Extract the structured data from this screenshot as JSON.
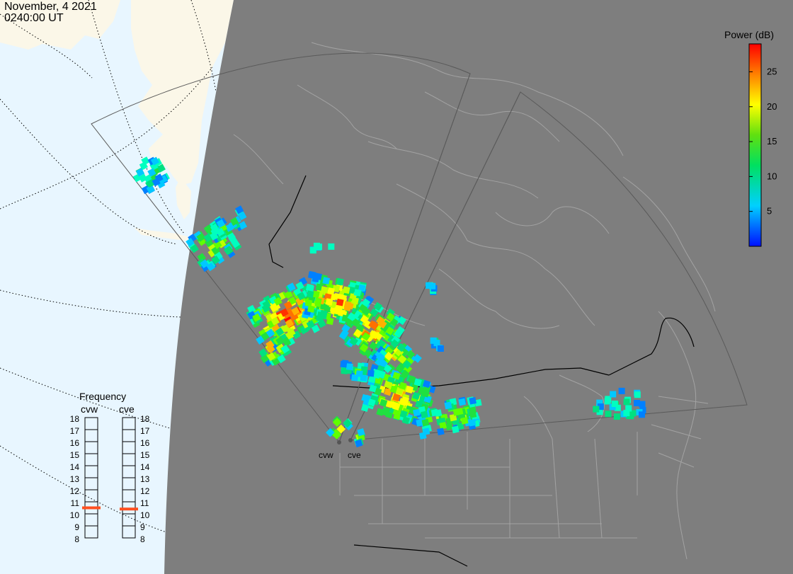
{
  "header": {
    "date": "November, 4 2021",
    "time": "0240:00 UT"
  },
  "colorbar": {
    "title": "Power (dB)",
    "min": 0,
    "max": 29,
    "ticks": [
      "5",
      "10",
      "15",
      "20",
      "25"
    ],
    "tick_values": [
      5,
      10,
      15,
      20,
      25
    ]
  },
  "radars": [
    {
      "code": "cvw",
      "label": "cvw"
    },
    {
      "code": "cve",
      "label": "cve"
    }
  ],
  "frequency_panel": {
    "title": "Frequency",
    "columns": [
      "cvw",
      "cve"
    ],
    "scale": [
      "18",
      "17",
      "16",
      "15",
      "14",
      "13",
      "12",
      "11",
      "10",
      "9",
      "8"
    ],
    "scale_values": [
      18,
      17,
      16,
      15,
      14,
      13,
      12,
      11,
      10,
      9,
      8
    ],
    "current_mhz": {
      "cvw": 10.5,
      "cve": 10.4
    }
  },
  "colors": {
    "ocean": "#e8f6ff",
    "land_day": "#fbf7e8",
    "night": "#7e7e7e",
    "coast_line": "#a8a8a8",
    "border_line": "#000000",
    "freq_marker": "#ff5020"
  }
}
